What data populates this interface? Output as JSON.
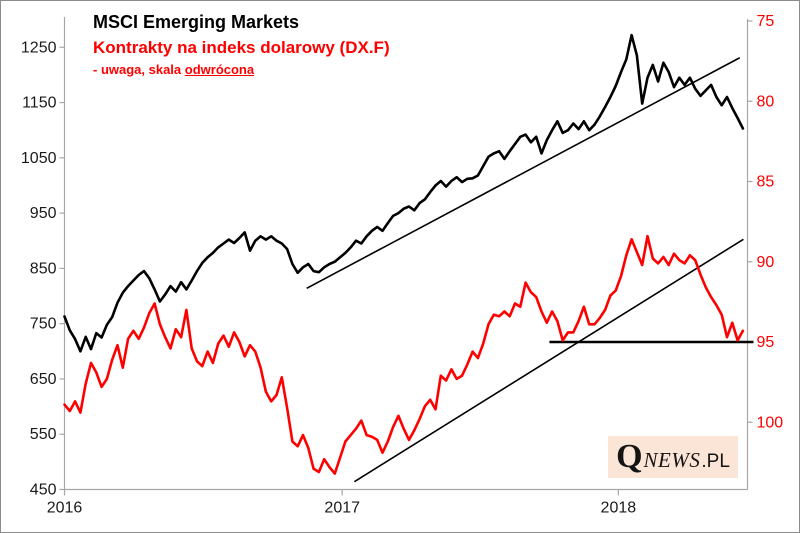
{
  "chart_data": {
    "type": "line",
    "title": "MSCI Emerging Markets",
    "subtitle": "Kontrakty na indeks dolarowy (DX.F)",
    "note_prefix": "- uwaga, skala ",
    "note_underlined": "odwrócona",
    "title_color": "#000000",
    "subtitle_color": "#FF0000",
    "x_axis": {
      "tick_labels": [
        "2016",
        "2017",
        "2018"
      ],
      "tick_weeks": [
        0,
        52.4,
        104.5
      ],
      "weeks_total": 128
    },
    "left_axis": {
      "ticks": [
        1250,
        1150,
        1050,
        950,
        850,
        750,
        650,
        550,
        450
      ],
      "range": [
        450,
        1250
      ],
      "label_color": "#1a1a1a"
    },
    "right_axis": {
      "ticks": [
        75,
        80,
        85,
        90,
        95,
        100
      ],
      "range": [
        75,
        100
      ],
      "inverted": true,
      "label_color": "#FF0000"
    },
    "axis_line_color": "#a6a6a6",
    "grid": false,
    "series": [
      {
        "name": "MSCI Emerging Markets",
        "axis": "left",
        "color": "#000000",
        "weekly_values": [
          763,
          738,
          722,
          700,
          726,
          704,
          733,
          725,
          748,
          762,
          788,
          806,
          818,
          828,
          838,
          845,
          832,
          812,
          790,
          803,
          818,
          808,
          825,
          812,
          828,
          845,
          860,
          870,
          878,
          888,
          895,
          902,
          896,
          905,
          915,
          882,
          900,
          908,
          902,
          908,
          900,
          895,
          885,
          858,
          842,
          852,
          858,
          845,
          843,
          852,
          858,
          862,
          870,
          878,
          888,
          900,
          895,
          908,
          918,
          925,
          918,
          932,
          945,
          950,
          958,
          962,
          955,
          968,
          975,
          988,
          1000,
          1008,
          998,
          1008,
          1015,
          1006,
          1012,
          1013,
          1018,
          1035,
          1052,
          1058,
          1062,
          1048,
          1062,
          1075,
          1088,
          1092,
          1078,
          1088,
          1058,
          1082,
          1100,
          1116,
          1095,
          1100,
          1112,
          1102,
          1116,
          1100,
          1110,
          1125,
          1142,
          1160,
          1180,
          1205,
          1228,
          1272,
          1235,
          1148,
          1195,
          1218,
          1188,
          1222,
          1205,
          1178,
          1195,
          1182,
          1195,
          1175,
          1162,
          1172,
          1182,
          1160,
          1145,
          1160,
          1140,
          1122,
          1103
        ]
      },
      {
        "name": "Kontrakty na indeks dolarowy (DX.F)",
        "axis": "right",
        "color": "#FF0000",
        "weekly_values": [
          98.9,
          99.3,
          98.7,
          99.4,
          97.6,
          96.3,
          96.9,
          97.8,
          97.3,
          96.1,
          95.2,
          96.6,
          94.8,
          94.3,
          94.8,
          94.1,
          93.2,
          92.6,
          93.9,
          94.7,
          95.4,
          94.2,
          94.7,
          93.0,
          95.4,
          96.2,
          96.5,
          95.6,
          96.3,
          95.1,
          94.6,
          95.3,
          94.4,
          95.0,
          95.9,
          95.2,
          95.6,
          96.6,
          98.1,
          98.7,
          98.3,
          97.2,
          99.1,
          101.2,
          101.5,
          100.8,
          101.6,
          102.9,
          103.1,
          102.3,
          102.8,
          103.2,
          102.2,
          101.2,
          100.8,
          100.4,
          99.9,
          100.8,
          100.9,
          101.1,
          101.9,
          101.2,
          100.3,
          99.6,
          100.4,
          101.1,
          100.5,
          99.8,
          99.0,
          98.6,
          99.2,
          97.1,
          97.4,
          96.7,
          97.3,
          97.1,
          96.4,
          95.6,
          96.0,
          95.1,
          93.9,
          93.3,
          93.4,
          93.1,
          93.4,
          92.6,
          92.8,
          91.3,
          91.9,
          92.2,
          93.1,
          93.8,
          93.1,
          93.7,
          94.9,
          94.4,
          94.4,
          93.7,
          92.8,
          93.9,
          93.9,
          93.5,
          93.0,
          92.1,
          91.8,
          90.9,
          89.6,
          88.6,
          89.4,
          90.2,
          88.4,
          89.8,
          90.1,
          89.7,
          90.2,
          89.5,
          89.9,
          90.1,
          89.6,
          89.9,
          90.8,
          91.6,
          92.2,
          92.7,
          93.3,
          94.7,
          93.8,
          94.9,
          94.3
        ]
      }
    ],
    "annotations": {
      "trendlines": [
        {
          "axis": "left",
          "from": {
            "week": 45.7,
            "value": 814
          },
          "to": {
            "week": 127.4,
            "value": 1231
          }
        },
        {
          "axis": "right",
          "from": {
            "week": 54.7,
            "value": 103.7
          },
          "to": {
            "week": 128.1,
            "value": 88.6
          }
        }
      ],
      "horizontal_line": {
        "axis": "right",
        "value": 95,
        "from_week": 91.5,
        "to_week": 130
      },
      "line_color": "#000000"
    }
  },
  "logo": {
    "q": "Q",
    "news": "NEWS",
    "pl": ".PL",
    "bg": "#FBE5D6"
  }
}
